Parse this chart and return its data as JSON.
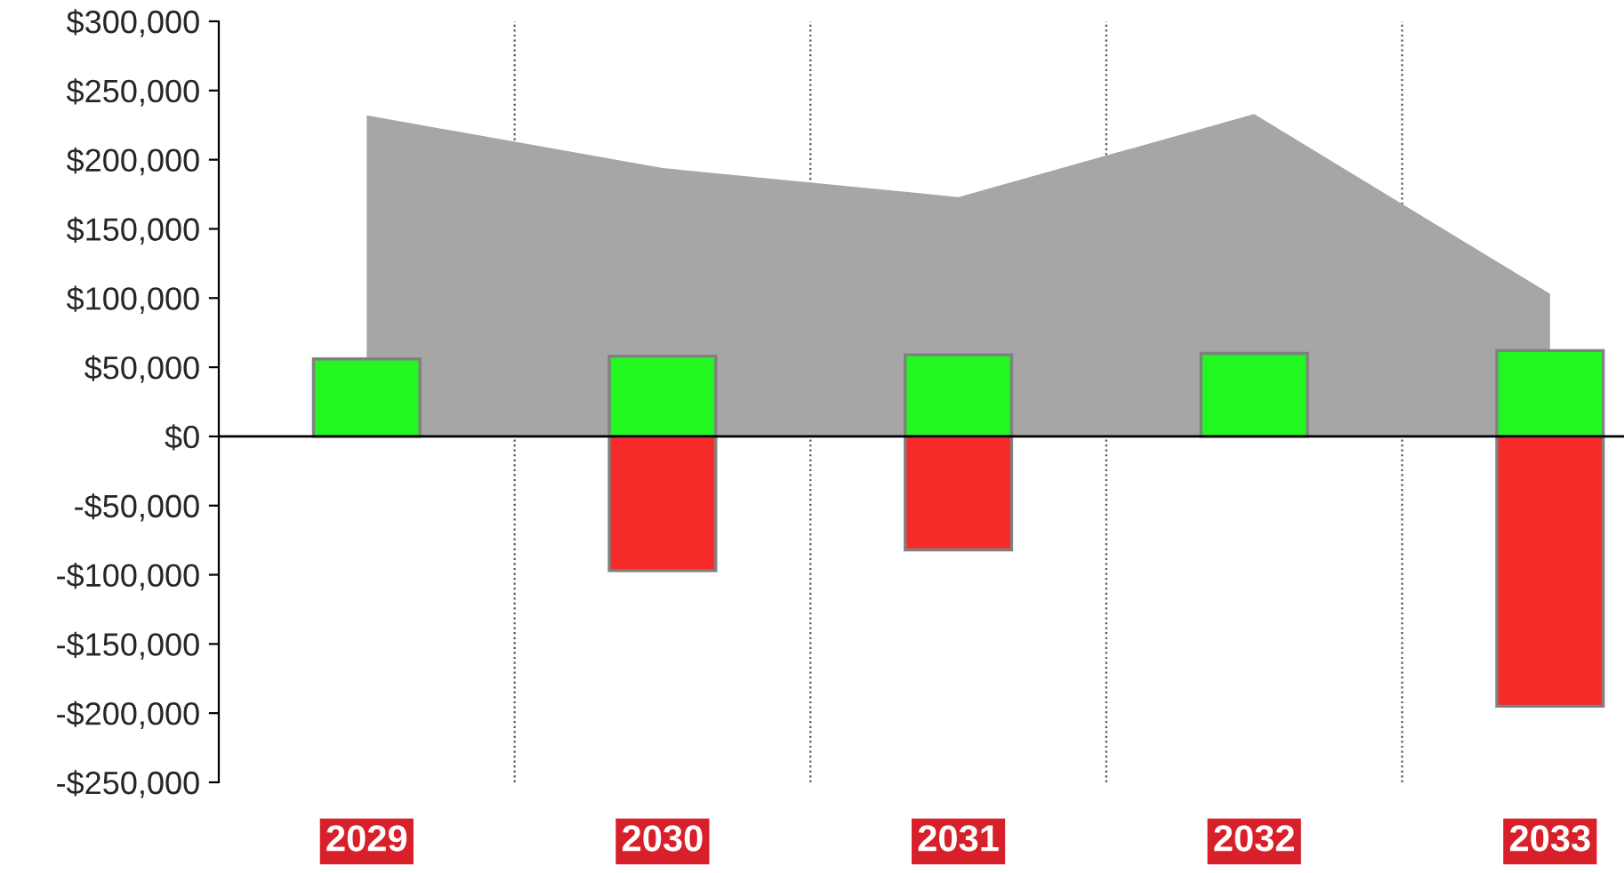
{
  "chart_data": {
    "type": "bar",
    "categories": [
      "2029",
      "2030",
      "2031",
      "2032",
      "2033"
    ],
    "series": [
      {
        "type": "area",
        "color": "#a6a6a6",
        "values": [
          232000,
          194000,
          173000,
          233000,
          103000
        ]
      },
      {
        "color": "#22f722",
        "values": [
          56000,
          58000,
          59000,
          60000,
          62000
        ]
      },
      {
        "color": "#f72a2a",
        "values": [
          null,
          -97000,
          -82000,
          null,
          -195000
        ]
      }
    ],
    "ylim": [
      -250000,
      300000
    ],
    "yticks": [
      {
        "value": -250000,
        "label": "-$250,000"
      },
      {
        "value": -200000,
        "label": "-$200,000"
      },
      {
        "value": -150000,
        "label": "-$150,000"
      },
      {
        "value": -100000,
        "label": "-$100,000"
      },
      {
        "value": -50000,
        "label": "-$50,000"
      },
      {
        "value": 0,
        "label": "$0"
      },
      {
        "value": 50000,
        "label": "$50,000"
      },
      {
        "value": 100000,
        "label": "$100,000"
      },
      {
        "value": 150000,
        "label": "$150,000"
      },
      {
        "value": 200000,
        "label": "$200,000"
      },
      {
        "value": 250000,
        "label": "$250,000"
      },
      {
        "value": 300000,
        "label": "$300,000"
      }
    ],
    "stacked": true,
    "grid": "x",
    "legend": false
  }
}
